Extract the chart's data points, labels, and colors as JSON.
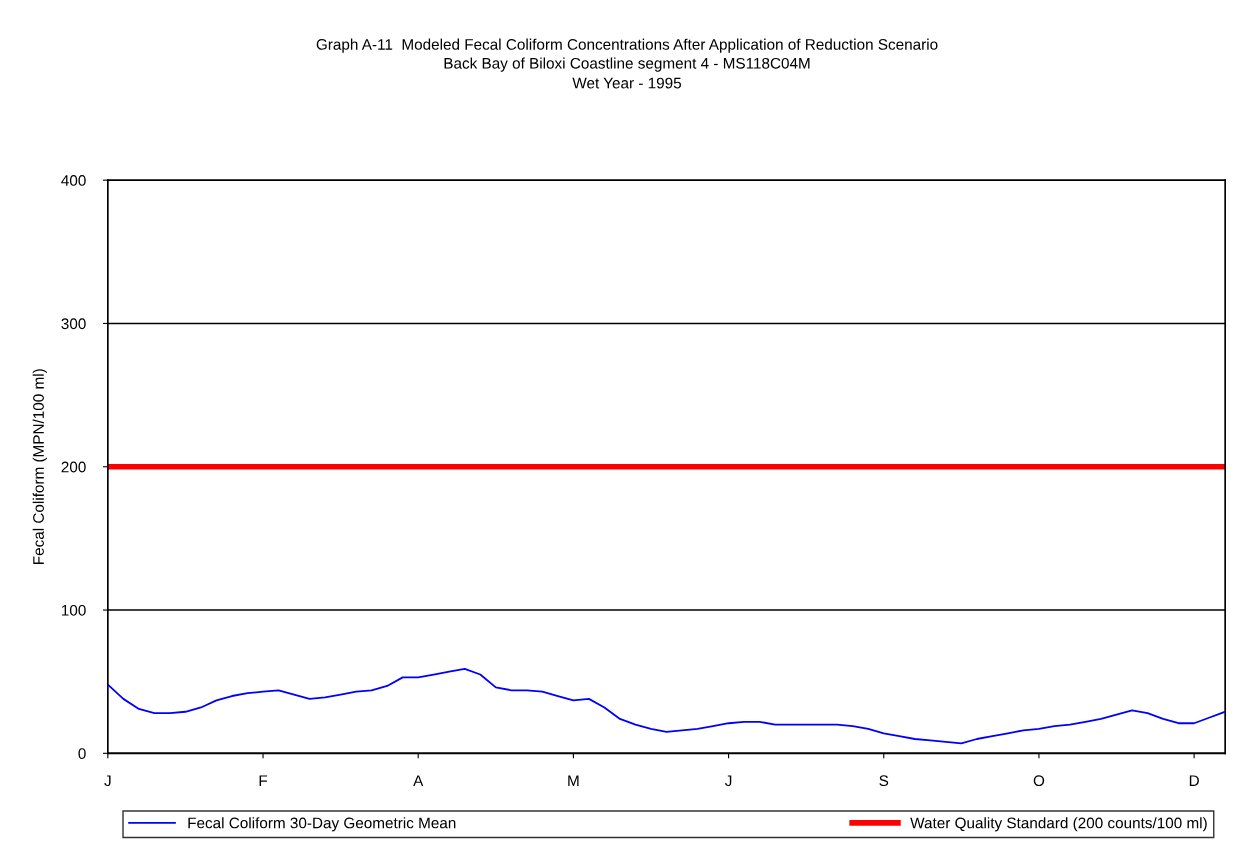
{
  "chart_data": {
    "type": "line",
    "title": "Graph A-11  Modeled Fecal Coliform Concentrations After Application of Reduction Scenario",
    "subtitle": "Back Bay of Biloxi Coastline segment 4 - MS118C04M\nWet Year - 1995",
    "ylabel": "Fecal Coliform (MPN/100 ml)",
    "categories": [
      "J",
      null,
      null,
      null,
      null,
      null,
      null,
      null,
      null,
      null,
      "F",
      null,
      null,
      null,
      null,
      null,
      null,
      null,
      null,
      null,
      "A",
      null,
      null,
      null,
      null,
      null,
      null,
      null,
      null,
      null,
      "M",
      null,
      null,
      null,
      null,
      null,
      null,
      null,
      null,
      null,
      "J",
      null,
      null,
      null,
      null,
      null,
      null,
      null,
      null,
      null,
      "S",
      null,
      null,
      null,
      null,
      null,
      null,
      null,
      null,
      null,
      "O",
      null,
      null,
      null,
      null,
      null,
      null,
      null,
      null,
      null,
      "D",
      null,
      null
    ],
    "series": [
      {
        "name": "Fecal Coliform 30-Day Geometric Mean",
        "color": "#0000ff",
        "values": [
          48,
          38,
          31,
          28,
          28,
          29,
          32,
          37,
          40,
          42,
          43,
          44,
          41,
          38,
          39,
          41,
          43,
          44,
          47,
          53,
          53,
          55,
          57,
          59,
          55,
          46,
          44,
          44,
          43,
          40,
          37,
          38,
          32,
          24,
          20,
          17,
          15,
          16,
          17,
          19,
          21,
          22,
          22,
          20,
          20,
          20,
          20,
          20,
          19,
          17,
          14,
          12,
          10,
          9,
          8,
          7,
          10,
          12,
          14,
          16,
          17,
          19,
          20,
          22,
          24,
          27,
          30,
          28,
          24,
          21,
          21,
          25,
          29
        ]
      }
    ],
    "ref_lines": [
      {
        "axis": "y",
        "value": 200,
        "label": "Water Quality Standard (200 counts/100 ml)",
        "color": "#ff0000"
      }
    ],
    "ylim": [
      0,
      400
    ],
    "yticks": [
      0,
      100,
      200,
      300,
      400
    ],
    "grid": "y",
    "legend": "bottom",
    "marker": "none",
    "line_style": "solid"
  }
}
